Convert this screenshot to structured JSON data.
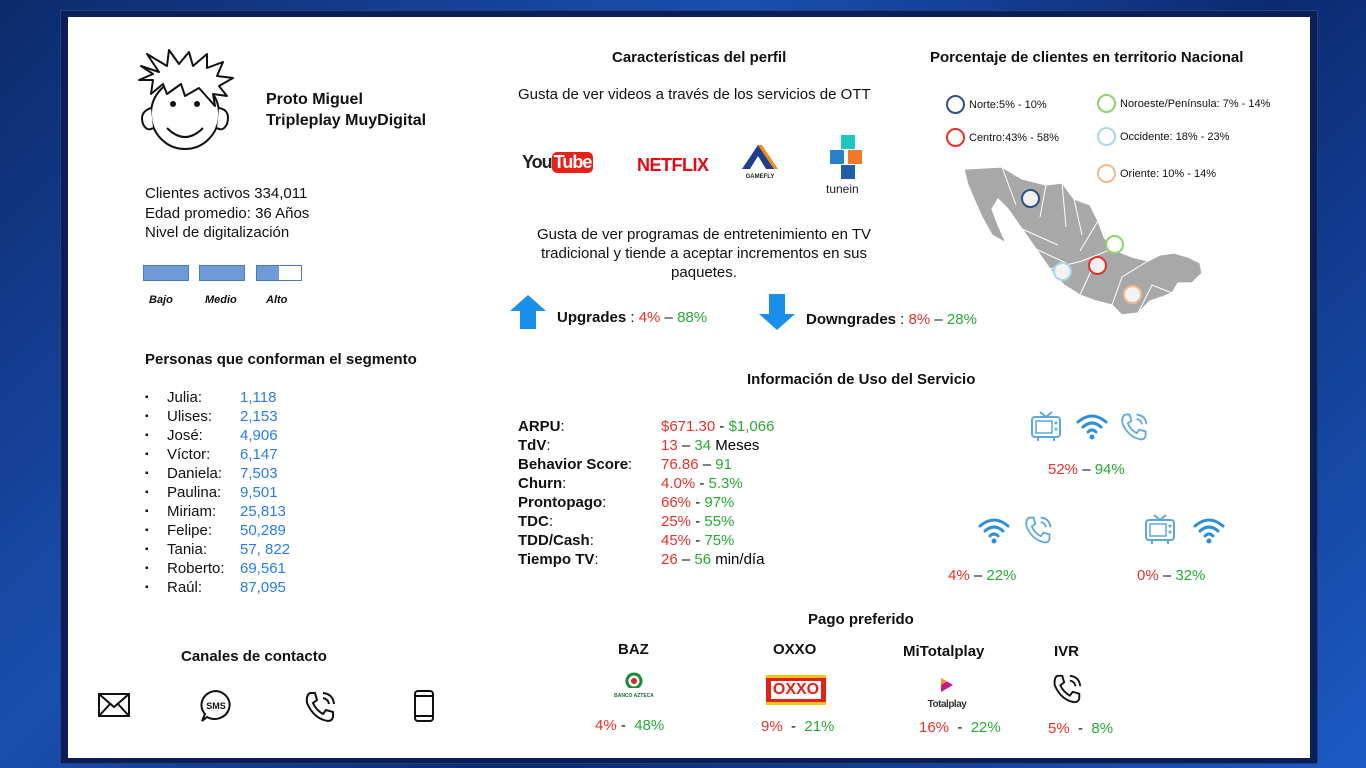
{
  "profile": {
    "name": "Proto Miguel",
    "segment": "Tripleplay MuyDigital",
    "active_clients": "Clientes activos 334,011",
    "avg_age": "Edad promedio: 36 Años",
    "digital_level_label": "Nivel de digitalización",
    "levels": [
      "Bajo",
      "Medio",
      "Alto"
    ],
    "alto_fill_fraction": 0.5
  },
  "persons": {
    "title": "Personas que conforman el segmento",
    "items": [
      {
        "name": "Julia:",
        "value": "1,118"
      },
      {
        "name": "Ulises:",
        "value": "2,153"
      },
      {
        "name": "José:",
        "value": "4,906"
      },
      {
        "name": "Víctor:",
        "value": "6,147"
      },
      {
        "name": "Daniela:",
        "value": "7,503"
      },
      {
        "name": "Paulina:",
        "value": "9,501"
      },
      {
        "name": "Miriam:",
        "value": "25,813"
      },
      {
        "name": "Felipe:",
        "value": "50,289"
      },
      {
        "name": "Tania:",
        "value": "57, 822"
      },
      {
        "name": "Roberto:",
        "value": "69,561"
      },
      {
        "name": "Raúl:",
        "value": "87,095"
      }
    ]
  },
  "contact": {
    "title": "Canales de contacto",
    "sms_label": "SMS"
  },
  "characteristics": {
    "title": "Características del perfil",
    "ott_text": "Gusta de ver videos a través de los servicios de OTT",
    "logos": {
      "youtube_a": "You",
      "youtube_b": "Tube",
      "netflix": "NETFLIX",
      "gamefly": "GAMEFLY",
      "tunein": "tunein"
    },
    "tv_text": "Gusta de ver programas de entretenimiento en TV tradicional y tiende a aceptar incrementos en sus paquetes.",
    "upgrades": {
      "label": "Upgrades",
      "sep": " : ",
      "low": "4%",
      "dash": " – ",
      "high": "88%"
    },
    "downgrades": {
      "label": "Downgrades",
      "sep": " : ",
      "low": "8%",
      "dash": " – ",
      "high": "28%"
    }
  },
  "territory": {
    "title": "Porcentaje de clientes en territorio Nacional",
    "regions": [
      {
        "label": "Norte:5% - 10%",
        "color": "#2f4f86"
      },
      {
        "label": "Noroeste/Península: 7% - 14%",
        "color": "#8fd16a"
      },
      {
        "label": "Centro:43% - 58%",
        "color": "#e8302a"
      },
      {
        "label": "Occidente: 18% - 23%",
        "color": "#a6d8e8"
      },
      {
        "label": "Oriente: 10% - 14%",
        "color": "#f2b98a"
      }
    ]
  },
  "usage": {
    "title": "Información de Uso del Servicio",
    "rows": [
      {
        "key": "ARPU",
        "colon": ":",
        "low": "$671.30",
        "sep": " - ",
        "high": "$1,066",
        "unit": ""
      },
      {
        "key": "TdV",
        "colon": ":",
        "low": "13",
        "sep": " – ",
        "high": "34",
        "unit": " Meses"
      },
      {
        "key": "Behavior Score",
        "colon": ":",
        "low": "76.86",
        "sep": " – ",
        "high": "91",
        "unit": ""
      },
      {
        "key": "Churn",
        "colon": ":",
        "low": "4.0%",
        "sep": " - ",
        "high": "5.3%",
        "unit": ""
      },
      {
        "key": "Prontopago",
        "colon": ":",
        "low": "66%",
        "sep": " - ",
        "high": "97%",
        "unit": ""
      },
      {
        "key": "TDC",
        "colon": ":",
        "low": "25%",
        "sep": " - ",
        "high": "55%",
        "unit": ""
      },
      {
        "key": "TDD/Cash",
        "colon": ":",
        "low": "45%",
        "sep": " - ",
        "high": "75%",
        "unit": ""
      },
      {
        "key": "Tiempo TV",
        "colon": ":",
        "low": "26",
        "sep": " – ",
        "high": "56",
        "unit": " min/día"
      }
    ],
    "combos": [
      {
        "low": "52%",
        "sep": " – ",
        "high": "94%"
      },
      {
        "low": "4%",
        "sep": " – ",
        "high": "22%"
      },
      {
        "low": "0%",
        "sep": " – ",
        "high": "32%"
      }
    ]
  },
  "payment": {
    "title": "Pago preferido",
    "methods": [
      {
        "name": "BAZ",
        "logo": "BANCO AZTECA",
        "low": "4%",
        "sep": " -  ",
        "high": "48%"
      },
      {
        "name": "OXXO",
        "logo": "OXXO",
        "low": "9%",
        "sep": "  -  ",
        "high": "21%"
      },
      {
        "name": "MiTotalplay",
        "logo": "Totalplay",
        "low": "16%",
        "sep": "  -  ",
        "high": "22%"
      },
      {
        "name": "IVR",
        "logo": "",
        "low": "5%",
        "sep": "  -  ",
        "high": "8%"
      }
    ]
  },
  "colors": {
    "low": "#e8302a",
    "high": "#2aa836",
    "value_blue": "#2a7de1",
    "icon_blue": "#2e8fd8"
  }
}
